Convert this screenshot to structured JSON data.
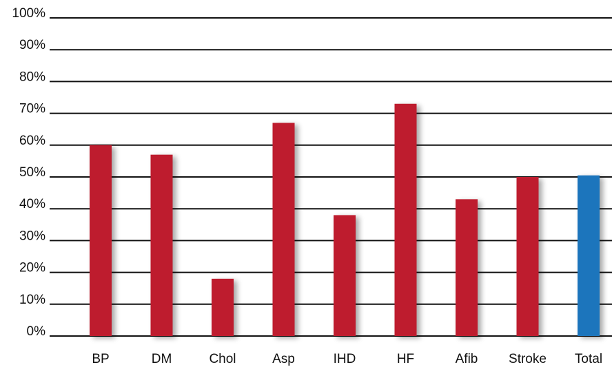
{
  "chart_data": {
    "type": "bar",
    "title": "",
    "xlabel": "",
    "ylabel": "",
    "ylim": [
      0,
      100
    ],
    "y_ticks": [
      "0%",
      "10%",
      "20%",
      "30%",
      "40%",
      "50%",
      "60%",
      "70%",
      "80%",
      "90%",
      "100%"
    ],
    "categories": [
      "BP",
      "DM",
      "Chol",
      "Asp",
      "IHD",
      "HF",
      "Afib",
      "Stroke",
      "Total"
    ],
    "values": [
      60,
      57,
      18,
      67,
      38,
      73,
      43,
      50,
      50.5
    ],
    "bar_colors": [
      "#be1e2d",
      "#be1e2d",
      "#be1e2d",
      "#be1e2d",
      "#be1e2d",
      "#be1e2d",
      "#be1e2d",
      "#be1e2d",
      "#1c75bc"
    ],
    "grid": true,
    "legend": "none"
  }
}
